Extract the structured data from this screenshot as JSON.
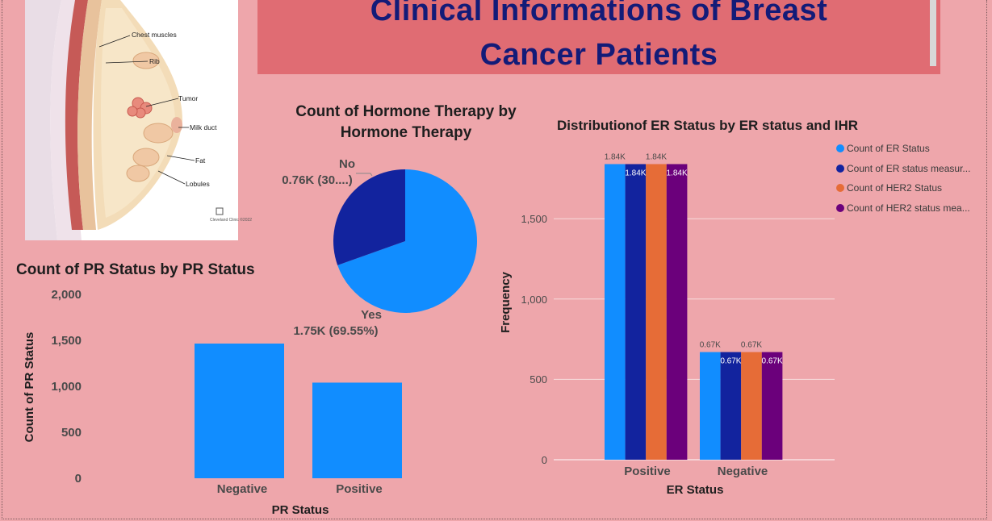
{
  "header": {
    "title_line1": "Clinical Informations of Breast",
    "title_line2": "Cancer Patients"
  },
  "anatomy_image": {
    "labels": [
      "Chest muscles",
      "Rib",
      "Tumor",
      "Milk duct",
      "Fat",
      "Lobules"
    ],
    "logo_text": "Cleveland Clinic ©2022"
  },
  "colors": {
    "background": "#eea6ab",
    "title_bg": "#e06c73",
    "title_text": "#131b78",
    "series": [
      "#118dff",
      "#12239e",
      "#e66c37",
      "#6b007b"
    ]
  },
  "chart_data": [
    {
      "id": "pr_status",
      "type": "bar",
      "title": "Count of PR Status by PR Status",
      "xlabel": "PR Status",
      "ylabel": "Count of PR Status",
      "categories": [
        "Negative",
        "Positive"
      ],
      "values": [
        1465,
        1040
      ],
      "ylim": [
        0,
        2000
      ],
      "yticks": [
        0,
        500,
        1000,
        1500,
        2000
      ],
      "ytick_labels": [
        "0",
        "500",
        "1,000",
        "1,500",
        "2,000"
      ],
      "grid": false
    },
    {
      "id": "hormone_therapy",
      "type": "pie",
      "title": "Count of Hormone Therapy by Hormone Therapy",
      "slices": [
        {
          "label": "Yes",
          "value": 1.75,
          "display": "1.75K (69.55%)",
          "percent": 69.55
        },
        {
          "label": "No",
          "value": 0.76,
          "display": "0.76K (30....)",
          "percent": 30.45
        }
      ]
    },
    {
      "id": "er_status",
      "type": "bar",
      "title": "Distributionof ER Status by ER status and IHR",
      "xlabel": "ER Status",
      "ylabel": "Frequency",
      "categories": [
        "Positive",
        "Negative"
      ],
      "series": [
        {
          "name": "Count of ER Status",
          "values": [
            1840,
            670
          ],
          "labels": [
            "1.84K",
            "0.67K"
          ]
        },
        {
          "name": "Count of ER status measur...",
          "values": [
            1840,
            670
          ],
          "labels": [
            "1.84K",
            "0.67K"
          ]
        },
        {
          "name": "Count of HER2 Status",
          "values": [
            1840,
            670
          ],
          "labels": [
            "1.84K",
            "0.67K"
          ]
        },
        {
          "name": "Count of HER2 status mea...",
          "values": [
            1840,
            670
          ],
          "labels": [
            "1.84K",
            "0.67K"
          ]
        }
      ],
      "ylim": [
        0,
        2000
      ],
      "yticks": [
        0,
        500,
        1000,
        1500
      ],
      "ytick_labels": [
        "0",
        "500",
        "1,000",
        "1,500"
      ],
      "grid": true,
      "legend": "right"
    }
  ]
}
